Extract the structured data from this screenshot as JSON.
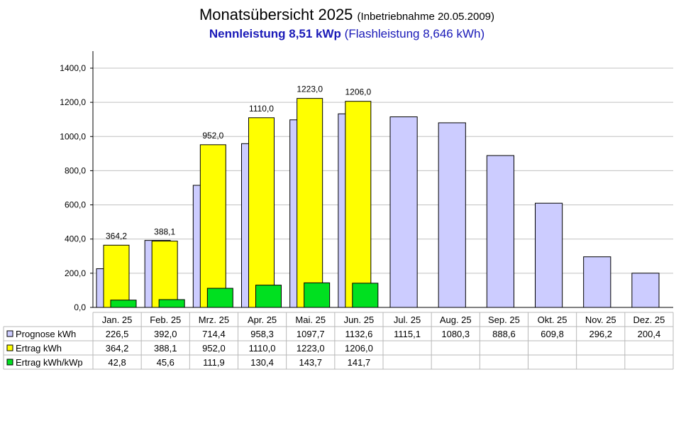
{
  "header": {
    "title": "Monatsübersicht 2025",
    "title_sub": "(Inbetriebnahme  20.05.2009)",
    "line2_bold": "Nennleistung 8,51 kWp",
    "line2_rest": "(Flashleistung 8,646 kWh)"
  },
  "colors": {
    "prognose": "#ccccff",
    "ertrag": "#ffff00",
    "ertrag_kwp": "#00e020",
    "grid": "#c0c0c0",
    "title_blue": "#1a1ab8"
  },
  "chart_data": {
    "type": "bar",
    "categories": [
      "Jan. 25",
      "Feb. 25",
      "Mrz. 25",
      "Apr. 25",
      "Mai. 25",
      "Jun. 25",
      "Jul. 25",
      "Aug. 25",
      "Sep. 25",
      "Okt. 25",
      "Nov. 25",
      "Dez. 25"
    ],
    "series": [
      {
        "name": "Prognose kWh",
        "values": [
          226.5,
          392.0,
          714.4,
          958.3,
          1097.7,
          1132.6,
          1115.1,
          1080.3,
          888.6,
          609.8,
          296.2,
          200.4
        ],
        "labels": [
          "226,5",
          "392,0",
          "714,4",
          "958,3",
          "1097,7",
          "1132,6",
          "1115,1",
          "1080,3",
          "888,6",
          "609,8",
          "296,2",
          "200,4"
        ]
      },
      {
        "name": "Ertrag kWh",
        "values": [
          364.2,
          388.1,
          952.0,
          1110.0,
          1223.0,
          1206.0,
          null,
          null,
          null,
          null,
          null,
          null
        ],
        "labels": [
          "364,2",
          "388,1",
          "952,0",
          "1110,0",
          "1223,0",
          "1206,0",
          "",
          "",
          "",
          "",
          "",
          ""
        ]
      },
      {
        "name": "Ertrag kWh/kWp",
        "values": [
          42.8,
          45.6,
          111.9,
          130.4,
          143.7,
          141.7,
          null,
          null,
          null,
          null,
          null,
          null
        ],
        "labels": [
          "42,8",
          "45,6",
          "111,9",
          "130,4",
          "143,7",
          "141,7",
          "",
          "",
          "",
          "",
          "",
          ""
        ]
      }
    ],
    "ylim": [
      0,
      1400
    ],
    "yticks": [
      0,
      200,
      400,
      600,
      800,
      1000,
      1200,
      1400
    ],
    "ytick_labels": [
      "0,0",
      "200,0",
      "400,0",
      "600,0",
      "800,0",
      "1000,0",
      "1200,0",
      "1400,0"
    ],
    "grid": true,
    "legend": "table-below"
  }
}
